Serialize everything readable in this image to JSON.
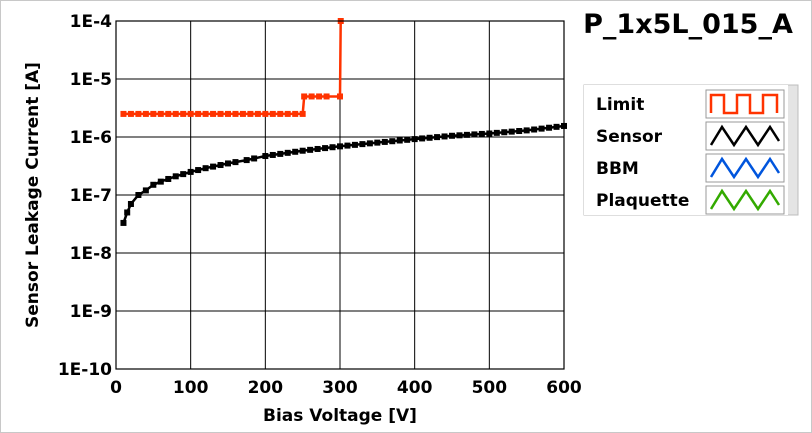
{
  "chart_data": {
    "type": "line",
    "title": "P_1x5L_015_A",
    "xlabel": "Bias Voltage [V]",
    "ylabel": "Sensor Leakage Current [A]",
    "xlim": [
      0,
      600
    ],
    "ylim": [
      1e-10,
      0.0001
    ],
    "yscale": "log",
    "grid": true,
    "x_ticks": [
      "0",
      "100",
      "200",
      "300",
      "400",
      "500",
      "600"
    ],
    "y_ticks": [
      "1E-10",
      "1E-9",
      "1E-8",
      "1E-7",
      "1E-6",
      "1E-5",
      "1E-4"
    ],
    "legend_position": "right",
    "series": [
      {
        "name": "Limit",
        "color": "#ff3300",
        "x": [
          10,
          250,
          252,
          300,
          301
        ],
        "y": [
          2.5e-06,
          2.5e-06,
          5e-06,
          5e-06,
          0.0001
        ]
      },
      {
        "name": "Sensor",
        "color": "#000000",
        "x": [
          10,
          15,
          20,
          30,
          40,
          50,
          60,
          80,
          100,
          120,
          150,
          175,
          200,
          250,
          300,
          350,
          400,
          450,
          500,
          550,
          600
        ],
        "y": [
          3.3e-08,
          5e-08,
          7e-08,
          1e-07,
          1.2e-07,
          1.5e-07,
          1.7e-07,
          2.1e-07,
          2.5e-07,
          2.9e-07,
          3.5e-07,
          4e-07,
          4.7e-07,
          5.8e-07,
          6.9e-07,
          8e-07,
          9.2e-07,
          1.05e-06,
          1.15e-06,
          1.3e-06,
          1.55e-06
        ]
      },
      {
        "name": "BBM",
        "color": "#0055dd",
        "x": [],
        "y": []
      },
      {
        "name": "Plaquette",
        "color": "#33aa00",
        "x": [],
        "y": []
      }
    ]
  }
}
